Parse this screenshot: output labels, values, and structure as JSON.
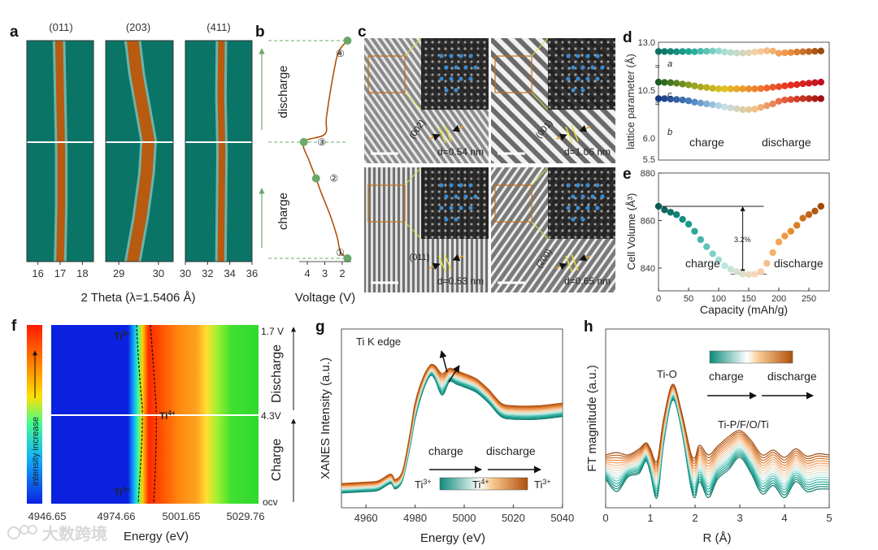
{
  "watermark": "大数跨境",
  "panel_labels": [
    "a",
    "b",
    "c",
    "d",
    "e",
    "f",
    "g",
    "h"
  ],
  "colors": {
    "teal": "#1a9a8c",
    "orange": "#e07a2a",
    "heatmap_bg": "#0a7467",
    "band": "#b85a10",
    "green_marker": "#6aa86a",
    "red_label": "#e05050",
    "green_label": "#3a7a4a"
  },
  "chart_data": [
    {
      "id": "a",
      "type": "heatmap",
      "xlabel": "2 Theta (λ=1.5406 Å)",
      "subplots": [
        {
          "title": "(011)",
          "xlim": [
            15.5,
            18.5
          ],
          "xticks": [
            "16",
            "17",
            "18"
          ],
          "xtick_values": [
            16,
            17,
            18
          ],
          "progress": [
            0,
            0.25,
            0.5,
            0.75,
            1
          ],
          "peak_center": [
            17.0,
            17.05,
            17.05,
            17.0,
            16.95
          ],
          "peak_width": 0.35
        },
        {
          "title": "(203)",
          "xlim": [
            28.67,
            30.37
          ],
          "xticks": [
            "29",
            "30"
          ],
          "xtick_values": [
            29,
            30
          ],
          "progress": [
            0,
            0.2,
            0.4,
            0.55,
            0.7,
            0.85,
            1
          ],
          "peak_center": [
            29.35,
            29.55,
            29.7,
            29.75,
            29.6,
            29.45,
            29.35
          ],
          "peak_width": 0.3
        },
        {
          "title": "(411)",
          "xlim": [
            30,
            36
          ],
          "xticks": [
            "30",
            "32",
            "34",
            "36"
          ],
          "xtick_values": [
            30,
            32,
            34,
            36
          ],
          "progress": [
            0,
            0.25,
            0.5,
            0.75,
            1
          ],
          "peak_center": [
            33.2,
            33.25,
            33.3,
            33.2,
            33.25
          ],
          "peak_width": 0.6
        }
      ]
    },
    {
      "id": "b",
      "type": "line",
      "xlabel": "Voltage (V)",
      "xticks": [
        "4",
        "3",
        "2"
      ],
      "xtick_values": [
        4,
        3,
        2
      ],
      "curve": [
        [
          0,
          1.7
        ],
        [
          0.03,
          2.1
        ],
        [
          0.1,
          2.3
        ],
        [
          0.2,
          2.7
        ],
        [
          0.3,
          3.2
        ],
        [
          0.367,
          3.5
        ],
        [
          0.45,
          3.9
        ],
        [
          0.534,
          4.2
        ],
        [
          0.57,
          3.0
        ],
        [
          0.65,
          2.9
        ],
        [
          0.85,
          2.5
        ],
        [
          0.95,
          2.2
        ],
        [
          1,
          1.7
        ]
      ],
      "points": [
        {
          "label": "①",
          "progress": 0,
          "voltage": 1.7
        },
        {
          "label": "②",
          "progress": 0.367,
          "voltage": 3.5
        },
        {
          "label": "③",
          "progress": 0.534,
          "voltage": 4.2
        },
        {
          "label": "④",
          "progress": 1,
          "voltage": 1.7
        }
      ],
      "segments": [
        "charge",
        "discharge"
      ]
    },
    {
      "id": "c",
      "type": "image",
      "images": [
        {
          "marker": "①",
          "plane": "(002)",
          "d_spacing": "d=0.54 nm"
        },
        {
          "marker": "②",
          "plane": "(001)",
          "d_spacing": "d=1.06 nm"
        },
        {
          "marker": "③",
          "plane": "(011)",
          "d_spacing": "d=0.53 nm"
        },
        {
          "marker": "④",
          "plane": "(200)",
          "d_spacing": "d=0.65 nm"
        }
      ]
    },
    {
      "id": "d",
      "type": "scatter",
      "ylabel": "lattice parameter (Å)",
      "yticks": [
        "13.0",
        "10.5",
        "6.0",
        "5.5"
      ],
      "capacity": [
        0,
        10,
        20,
        30,
        40,
        50,
        60,
        70,
        80,
        90,
        100,
        110,
        120,
        130,
        140,
        150,
        160,
        170,
        180,
        190,
        200,
        210,
        220,
        230,
        240,
        250,
        260,
        270
      ],
      "series": [
        {
          "name": "a",
          "values": [
            12.62,
            12.62,
            12.62,
            12.61,
            12.62,
            12.62,
            12.61,
            12.63,
            12.63,
            12.64,
            12.64,
            12.6,
            12.58,
            12.56,
            12.56,
            12.57,
            12.6,
            12.62,
            12.65,
            12.64,
            12.55,
            12.57,
            12.58,
            12.6,
            12.61,
            12.62,
            12.63,
            12.64
          ],
          "colors": [
            "#0e6e5e",
            "#1fa898",
            "#a8e0d8",
            "#f5d0a8",
            "#f09040",
            "#9a4a10"
          ]
        },
        {
          "name": "c",
          "values": [
            10.8,
            10.79,
            10.78,
            10.76,
            10.73,
            10.7,
            10.66,
            10.62,
            10.6,
            10.57,
            10.55,
            10.55,
            10.55,
            10.55,
            10.55,
            10.55,
            10.55,
            10.56,
            10.58,
            10.61,
            10.63,
            10.66,
            10.69,
            10.71,
            10.74,
            10.76,
            10.78,
            10.8
          ],
          "colors": [
            "#1a5e20",
            "#90a020",
            "#e0c020",
            "#f08030",
            "#e83020",
            "#c01020"
          ]
        },
        {
          "name": "b",
          "values": [
            6.9,
            6.9,
            6.89,
            6.88,
            6.87,
            6.85,
            6.82,
            6.8,
            6.78,
            6.76,
            6.74,
            6.71,
            6.69,
            6.67,
            6.65,
            6.65,
            6.66,
            6.7,
            6.74,
            6.78,
            6.84,
            6.87,
            6.88,
            6.89,
            6.9,
            6.9,
            6.9,
            6.9
          ],
          "colors": [
            "#1a3a80",
            "#4a80c0",
            "#c0e0e8",
            "#f0c080",
            "#e05030",
            "#a01010"
          ]
        }
      ],
      "annotations": {
        "charge": "charge",
        "discharge": "discharge"
      }
    },
    {
      "id": "e",
      "type": "scatter",
      "xlabel": "Capacity (mAh/g)",
      "ylabel": "Cell Volume (Å³)",
      "xticks": [
        "0",
        "50",
        "100",
        "150",
        "200",
        "250"
      ],
      "xtick_values": [
        0,
        50,
        100,
        150,
        200,
        250
      ],
      "yticks": [
        "880",
        "860",
        "840"
      ],
      "ytick_values": [
        880,
        860,
        840
      ],
      "xlim": [
        0,
        284
      ],
      "ylim": [
        830.4,
        880
      ],
      "capacity": [
        0,
        10,
        20,
        30,
        40,
        50,
        60,
        70,
        80,
        90,
        100,
        110,
        120,
        130,
        140,
        150,
        160,
        170,
        180,
        190,
        200,
        210,
        220,
        230,
        240,
        250,
        260,
        270
      ],
      "values": [
        866,
        864.5,
        863.5,
        862.5,
        860.5,
        858.5,
        855.5,
        852,
        849,
        846,
        843.5,
        841,
        839.5,
        838.5,
        837.5,
        837.3,
        837.4,
        838.5,
        842,
        846.5,
        851,
        853.5,
        855.5,
        858,
        861,
        862.5,
        864,
        866
      ],
      "colors": [
        "#0a5a50",
        "#1aa090",
        "#b8e8e0",
        "#f8d8b8",
        "#f09030",
        "#a04a08"
      ],
      "change_label": "3.2%",
      "annotations": {
        "charge": "charge",
        "discharge": "discharge"
      }
    },
    {
      "id": "f",
      "type": "heatmap",
      "xlabel": "Energy (eV)",
      "xticks": [
        "4946.65",
        "4974.66",
        "5001.65",
        "5029.76"
      ],
      "colorbar_label": "intensity increase",
      "right_labels": {
        "top": "1.7 V",
        "middle": "4.3V",
        "bottom": "ocv",
        "upper_segment": "Discharge",
        "lower_segment": "Charge"
      },
      "annotations": [
        {
          "base": "Ti",
          "sup": "3+"
        },
        {
          "base": "Ti",
          "sup": "4+"
        },
        {
          "base": "Ti",
          "sup": "3+"
        }
      ]
    },
    {
      "id": "g",
      "type": "line",
      "title": "Ti K edge",
      "xlabel": "Energy (eV)",
      "ylabel": "XANES Intensity (a.u.)",
      "xlim": [
        4950,
        5040
      ],
      "xticks": [
        "4960",
        "4980",
        "5000",
        "5020",
        "5040"
      ],
      "xtick_values": [
        4960,
        4980,
        5000,
        5020,
        5040
      ],
      "n_curves": 16,
      "energy": [
        4950,
        4960,
        4965,
        4970,
        4972,
        4975,
        4978,
        4980,
        4983,
        4986,
        4988,
        4991,
        4994,
        4997,
        5000,
        5005,
        5010,
        5015,
        5020,
        5030,
        5040
      ],
      "series": [
        {
          "name": "charge start",
          "values": [
            0.05,
            0.06,
            0.07,
            0.12,
            0.08,
            0.15,
            0.4,
            0.6,
            0.8,
            0.92,
            0.9,
            0.78,
            0.88,
            0.86,
            0.84,
            0.8,
            0.72,
            0.62,
            0.6,
            0.6,
            0.62
          ]
        },
        {
          "name": "discharge end",
          "values": [
            0.12,
            0.13,
            0.14,
            0.19,
            0.15,
            0.22,
            0.5,
            0.72,
            0.9,
            1.0,
            1.0,
            0.94,
            0.98,
            0.96,
            0.94,
            0.9,
            0.82,
            0.72,
            0.7,
            0.7,
            0.72
          ]
        }
      ],
      "legend": {
        "charge": "charge",
        "discharge": "discharge",
        "start": {
          "base": "Ti",
          "sup": "3+"
        },
        "middle": {
          "base": "Ti",
          "sup": "4+"
        },
        "end": {
          "base": "Ti",
          "sup": "3+"
        }
      }
    },
    {
      "id": "h",
      "type": "line",
      "xlabel": "R (Å)",
      "ylabel": "FT magnitude (a.u.)",
      "xlim": [
        0,
        5
      ],
      "xticks": [
        "0",
        "1",
        "2",
        "3",
        "4",
        "5"
      ],
      "xtick_values": [
        0,
        1,
        2,
        3,
        4,
        5
      ],
      "n_curves": 16,
      "r": [
        0,
        0.25,
        0.5,
        0.75,
        0.9,
        1.0,
        1.15,
        1.3,
        1.5,
        1.7,
        1.9,
        2.0,
        2.1,
        2.3,
        2.5,
        2.75,
        3.0,
        3.25,
        3.5,
        3.75,
        4.0,
        4.25,
        4.5,
        4.75,
        5.0
      ],
      "series": [
        {
          "name": "charge",
          "values": [
            0.2,
            0.1,
            0.22,
            0.25,
            0.35,
            0.25,
            0.05,
            0.5,
            0.85,
            0.6,
            0.15,
            0.05,
            0.18,
            0.05,
            0.2,
            0.28,
            0.38,
            0.25,
            0.08,
            0.15,
            0.05,
            0.18,
            0.1,
            0.12,
            0.12
          ]
        },
        {
          "name": "discharge",
          "values": [
            0.4,
            0.42,
            0.4,
            0.45,
            0.5,
            0.45,
            0.35,
            0.7,
            0.98,
            0.75,
            0.42,
            0.38,
            0.48,
            0.4,
            0.47,
            0.55,
            0.6,
            0.52,
            0.4,
            0.44,
            0.38,
            0.45,
            0.39,
            0.41,
            0.4
          ]
        }
      ],
      "annotations": {
        "peak1": "Ti-O",
        "peak2": "Ti-P/F/O/Ti",
        "charge": "charge",
        "discharge": "discharge"
      }
    }
  ]
}
